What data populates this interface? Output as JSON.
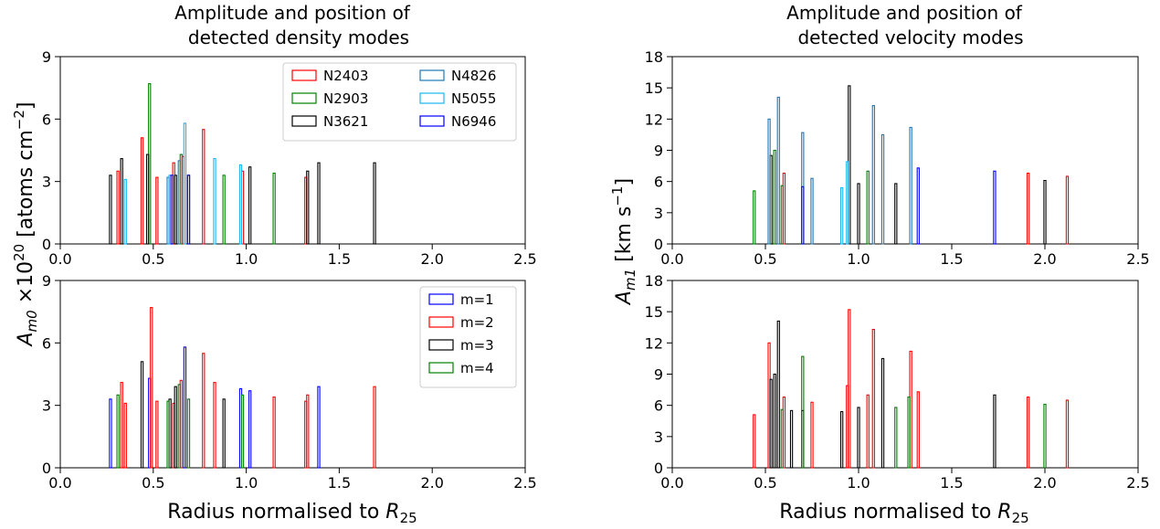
{
  "figure": {
    "left_title_line1": "Amplitude and position of",
    "left_title_line2": "detected density modes",
    "right_title_line1": "Amplitude and position of",
    "right_title_line2": "detected velocity modes",
    "left_ylabel_prefix": "A",
    "left_ylabel_sub": "m0",
    "left_ylabel_mid": " ×10",
    "left_ylabel_sup": "20",
    "left_ylabel_unit_start": "  [atoms cm",
    "left_ylabel_unit_sup": "−2",
    "left_ylabel_unit_end": "]",
    "right_ylabel_prefix": "A",
    "right_ylabel_sub": "m1",
    "right_ylabel_unit_start": "  [km s",
    "right_ylabel_unit_sup": "−1",
    "right_ylabel_unit_end": "]",
    "xlabel_prefix": "Radius normalised to ",
    "xlabel_symbol": "R",
    "xlabel_sub": "25"
  },
  "colors": {
    "N2403": "#ff0000",
    "N2903": "#008000",
    "N3621": "#000000",
    "N4826": "#1f77b4",
    "N5055": "#17b7f0",
    "N6946": "#0000ff",
    "m=1": "#0000ff",
    "m=2": "#ff0000",
    "m=3": "#000000",
    "m=4": "#008000"
  },
  "chart_data": [
    {
      "type": "bar",
      "panel": "top-left",
      "xlim": [
        0,
        2.5
      ],
      "ylim": [
        0,
        9
      ],
      "xticks": [
        "0.0",
        "0.5",
        "1.0",
        "1.5",
        "2.0",
        "2.5"
      ],
      "yticks": [
        "0",
        "3",
        "6",
        "9"
      ],
      "grid": false,
      "legend_position": "top-right",
      "legend_columns": 2,
      "legend": [
        "N2403",
        "N2903",
        "N3621",
        "N4826",
        "N5055",
        "N6946"
      ],
      "series": [
        {
          "name": "N2403",
          "x": [
            0.31,
            0.44,
            0.52,
            0.61,
            0.66,
            0.77,
            0.98,
            1.32
          ],
          "values": [
            3.5,
            5.1,
            3.2,
            3.9,
            4.2,
            5.5,
            3.5,
            3.2
          ]
        },
        {
          "name": "N2903",
          "x": [
            0.48,
            0.65,
            0.88,
            1.15
          ],
          "values": [
            7.7,
            4.3,
            3.3,
            3.4
          ]
        },
        {
          "name": "N3621",
          "x": [
            0.27,
            0.33,
            0.47,
            0.62,
            0.69,
            1.02,
            1.33,
            1.39,
            1.69
          ],
          "values": [
            3.3,
            4.1,
            4.3,
            3.3,
            3.3,
            3.7,
            3.5,
            3.9,
            3.9
          ]
        },
        {
          "name": "N4826",
          "x": [
            0.58,
            0.64
          ],
          "values": [
            3.2,
            4.0
          ]
        },
        {
          "name": "N5055",
          "x": [
            0.35,
            0.59,
            0.67,
            0.83,
            0.97
          ],
          "values": [
            3.1,
            3.3,
            5.8,
            4.1,
            3.8
          ]
        },
        {
          "name": "N6946",
          "x": [
            0.6,
            0.69
          ],
          "values": [
            3.3,
            3.3
          ]
        }
      ]
    },
    {
      "type": "bar",
      "panel": "bottom-left",
      "xlim": [
        0,
        2.5
      ],
      "ylim": [
        0,
        9
      ],
      "xticks": [
        "0.0",
        "0.5",
        "1.0",
        "1.5",
        "2.0",
        "2.5"
      ],
      "yticks": [
        "0",
        "3",
        "6",
        "9"
      ],
      "grid": false,
      "legend_position": "top-right",
      "legend_columns": 1,
      "legend": [
        "m=1",
        "m=2",
        "m=3",
        "m=4"
      ],
      "series": [
        {
          "name": "m=1",
          "x": [
            0.27,
            0.48,
            0.67,
            0.97,
            1.02,
            1.39
          ],
          "values": [
            3.3,
            4.3,
            5.8,
            3.8,
            3.7,
            3.9
          ]
        },
        {
          "name": "m=2",
          "x": [
            0.33,
            0.35,
            0.49,
            0.52,
            0.61,
            0.65,
            0.77,
            0.83,
            1.15,
            1.32,
            1.33,
            1.69
          ],
          "values": [
            4.1,
            3.1,
            7.7,
            3.2,
            3.1,
            4.2,
            5.5,
            4.1,
            3.4,
            3.2,
            3.5,
            3.9
          ]
        },
        {
          "name": "m=3",
          "x": [
            0.44,
            0.59,
            0.62,
            0.88
          ],
          "values": [
            5.1,
            3.3,
            3.9,
            3.3
          ]
        },
        {
          "name": "m=4",
          "x": [
            0.31,
            0.58,
            0.64,
            0.69,
            0.98
          ],
          "values": [
            3.5,
            3.2,
            4.0,
            3.3,
            3.5
          ]
        }
      ]
    },
    {
      "type": "bar",
      "panel": "top-right",
      "xlim": [
        0,
        2.5
      ],
      "ylim": [
        0,
        18
      ],
      "xticks": [
        "0.0",
        "0.5",
        "1.0",
        "1.5",
        "2.0",
        "2.5"
      ],
      "yticks": [
        "0",
        "3",
        "6",
        "9",
        "12",
        "15",
        "18"
      ],
      "grid": false,
      "series": [
        {
          "name": "N2403",
          "x": [
            0.6,
            1.91,
            2.12
          ],
          "values": [
            6.8,
            6.8,
            6.5
          ]
        },
        {
          "name": "N2903",
          "x": [
            0.44,
            0.55,
            0.59,
            1.05
          ],
          "values": [
            5.1,
            9.0,
            5.6,
            7.0
          ]
        },
        {
          "name": "N3621",
          "x": [
            0.53,
            0.95,
            1.0,
            1.2,
            2.0
          ],
          "values": [
            8.5,
            15.2,
            5.8,
            5.8,
            6.1
          ]
        },
        {
          "name": "N4826",
          "x": [
            0.52,
            0.57,
            0.7,
            0.75,
            1.08,
            1.13,
            1.28
          ],
          "values": [
            12.0,
            14.1,
            10.7,
            6.3,
            13.3,
            10.5,
            11.2
          ]
        },
        {
          "name": "N5055",
          "x": [
            0.91,
            0.94
          ],
          "values": [
            5.4,
            7.9
          ]
        },
        {
          "name": "N6946",
          "x": [
            0.7,
            1.32,
            1.73
          ],
          "values": [
            5.5,
            7.3,
            7.0
          ]
        }
      ]
    },
    {
      "type": "bar",
      "panel": "bottom-right",
      "xlim": [
        0,
        2.5
      ],
      "ylim": [
        0,
        18
      ],
      "xticks": [
        "0.0",
        "0.5",
        "1.0",
        "1.5",
        "2.0",
        "2.5"
      ],
      "yticks": [
        "0",
        "3",
        "6",
        "9",
        "12",
        "15",
        "18"
      ],
      "grid": false,
      "series": [
        {
          "name": "m=2",
          "x": [
            0.44,
            0.52,
            0.6,
            0.75,
            0.94,
            0.95,
            1.05,
            1.08,
            1.28,
            1.32,
            1.91,
            2.12
          ],
          "values": [
            5.1,
            12.0,
            6.8,
            6.3,
            7.9,
            15.2,
            7.0,
            13.3,
            11.2,
            7.3,
            6.8,
            6.5
          ]
        },
        {
          "name": "m=3",
          "x": [
            0.53,
            0.55,
            0.57,
            0.64,
            0.7,
            0.91,
            1.0,
            1.13,
            1.73
          ],
          "values": [
            8.5,
            9.0,
            14.1,
            5.5,
            5.5,
            5.4,
            5.8,
            10.5,
            7.0
          ]
        },
        {
          "name": "m=4",
          "x": [
            0.59,
            0.7,
            1.2,
            1.27,
            2.0
          ],
          "values": [
            5.6,
            10.7,
            5.8,
            6.8,
            6.1
          ]
        }
      ]
    }
  ]
}
